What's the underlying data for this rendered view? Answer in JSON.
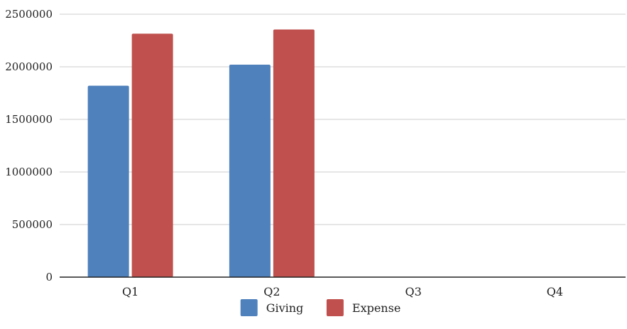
{
  "chart_data": {
    "type": "bar",
    "categories": [
      "Q1",
      "Q2",
      "Q3",
      "Q4"
    ],
    "series": [
      {
        "name": "Giving",
        "values": [
          1820000,
          2020000,
          0,
          0
        ],
        "color": "#4f81bd"
      },
      {
        "name": "Expense",
        "values": [
          2315000,
          2355000,
          0,
          0
        ],
        "color": "#c0504d"
      }
    ],
    "y_ticks": [
      "0",
      "500000",
      "1000000",
      "1500000",
      "2000000",
      "2500000"
    ],
    "ylim": [
      0,
      2500000
    ],
    "grid": true,
    "legend_position": "bottom-center",
    "gridline_color": "#cccccc",
    "axis_color": "#222222"
  }
}
